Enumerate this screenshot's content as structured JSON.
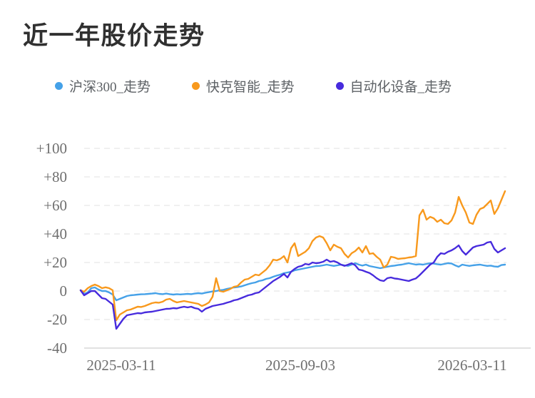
{
  "title": "近一年股价走势",
  "legend": [
    {
      "label": "沪深300_走势",
      "color": "#45a1e8"
    },
    {
      "label": "快克智能_走势",
      "color": "#f8991d"
    },
    {
      "label": "自动化设备_走势",
      "color": "#472bdd"
    }
  ],
  "colors": {
    "title_text": "#303030",
    "legend_text": "#5e6266",
    "tick_text": "#6f6f6f",
    "gridline": "#ebebeb",
    "axis_line": "#cfcfcf",
    "background": "#ffffff"
  },
  "chart_data": {
    "type": "line",
    "title": "近一年股价走势",
    "x_tick_labels": [
      "2025-03-11",
      "2025-09-03",
      "2026-03-11"
    ],
    "y_ticks": [
      100,
      80,
      60,
      40,
      20,
      0,
      -20,
      -40
    ],
    "y_tick_labels": [
      "+100",
      "+80",
      "+60",
      "+40",
      "+20",
      "0",
      "-20",
      "-40"
    ],
    "ylim": [
      -40,
      100
    ],
    "grid": "horizontal dashed",
    "legend_position": "top-left",
    "unit": "percent change",
    "series": [
      {
        "name": "沪深300_走势",
        "color": "#45a1e8",
        "values": [
          0.5,
          -2,
          -1,
          2,
          2.5,
          1,
          0,
          0,
          -1,
          -2.5,
          -6.5,
          -5.5,
          -4.5,
          -3.5,
          -3,
          -2.8,
          -2.5,
          -2.3,
          -2.2,
          -2,
          -1.8,
          -1.5,
          -2,
          -2.2,
          -1.8,
          -2.2,
          -2.5,
          -2.2,
          -2.4,
          -2.2,
          -2,
          -2.2,
          -1.8,
          -1.5,
          -1.8,
          -1.2,
          -0.8,
          -0.3,
          0,
          0.5,
          0.8,
          1.5,
          2,
          2.5,
          2.8,
          3.2,
          4,
          4.8,
          5.5,
          6,
          7,
          7.5,
          8.5,
          9,
          10,
          10.8,
          11.5,
          12.5,
          13,
          13.5,
          14.5,
          15,
          15.5,
          16,
          16.5,
          17,
          17.5,
          17.6,
          18,
          18.5,
          18,
          17.6,
          18,
          18.5,
          18,
          17.6,
          18.5,
          19.5,
          18.5,
          17.8,
          18.5,
          17.5,
          17,
          16.5,
          16,
          16.5,
          17,
          17.5,
          17.8,
          18.2,
          18.5,
          19,
          19.5,
          19,
          18.5,
          18.8,
          18.5,
          19,
          19.5,
          19.2,
          18.8,
          18.5,
          19,
          19.5,
          19.3,
          18,
          17,
          18.5,
          18,
          17.6,
          18,
          18.3,
          18.5,
          18,
          17.6,
          17.8,
          17.2,
          17,
          18.2,
          18.5
        ]
      },
      {
        "name": "快克智能_走势",
        "color": "#f8991d",
        "values": [
          0.5,
          -0.5,
          2,
          3.5,
          4.5,
          3.5,
          2,
          2.6,
          2,
          0.5,
          -20.5,
          -16.5,
          -15,
          -13.5,
          -13,
          -12,
          -11,
          -11.2,
          -10.5,
          -9.5,
          -8.5,
          -8,
          -8.2,
          -7.5,
          -6,
          -5.5,
          -7,
          -8,
          -7.5,
          -7,
          -7.5,
          -8,
          -8.5,
          -9,
          -10.5,
          -9.5,
          -8,
          -4,
          9,
          0,
          -0.5,
          0.5,
          1.5,
          3,
          3.5,
          6,
          8,
          8.5,
          10,
          11.5,
          11,
          13,
          15,
          18,
          22,
          21.5,
          22.5,
          24.5,
          20,
          30,
          33.5,
          24.5,
          26,
          27.5,
          30,
          35,
          37.5,
          38.5,
          37.5,
          33.5,
          28.5,
          32.5,
          31,
          30,
          26,
          23.5,
          26.5,
          28,
          30.5,
          27,
          31.5,
          26,
          26.5,
          24,
          22,
          16.5,
          18.5,
          24,
          23.5,
          22.5,
          22.8,
          23,
          23.5,
          23.8,
          24.5,
          53,
          57,
          50,
          52,
          51,
          48.5,
          50,
          47.5,
          47,
          49.5,
          55,
          66,
          60,
          55,
          48,
          47,
          53.5,
          57.5,
          58.5,
          61,
          63.5,
          54,
          58,
          64,
          70
        ]
      },
      {
        "name": "自动化设备_走势",
        "color": "#472bdd",
        "values": [
          0.5,
          -3,
          -1.5,
          0,
          0,
          -2.5,
          -5,
          -5.5,
          -7.5,
          -9.5,
          -26.5,
          -23,
          -19.5,
          -17,
          -16.5,
          -16,
          -15.5,
          -15.7,
          -15,
          -14.7,
          -14.5,
          -14,
          -13.5,
          -13,
          -12.5,
          -12.4,
          -12,
          -12.2,
          -11.5,
          -11,
          -11.5,
          -11,
          -12,
          -12.5,
          -14.5,
          -12.5,
          -11.5,
          -10.5,
          -10,
          -9.5,
          -9,
          -8.2,
          -7.5,
          -6.5,
          -6,
          -5,
          -4,
          -3,
          -2.5,
          -1.5,
          -1,
          1,
          3,
          5,
          7,
          8.5,
          10,
          12,
          9.5,
          13.5,
          15.5,
          17,
          17.6,
          19,
          18.5,
          20,
          19.5,
          19.8,
          20.5,
          22,
          20.5,
          21,
          20,
          18.5,
          17.6,
          18.5,
          19.5,
          18,
          15,
          14.5,
          13.5,
          12.6,
          11,
          9,
          7.5,
          7,
          9,
          9.5,
          8.8,
          8.5,
          8,
          7.5,
          7,
          8,
          8.8,
          11,
          13.5,
          16,
          18.5,
          20,
          24,
          26.5,
          26,
          27.5,
          28.5,
          30,
          32,
          28,
          25.5,
          28,
          30.5,
          31.5,
          32,
          32.5,
          34,
          34.5,
          29.5,
          27,
          28.5,
          30
        ]
      }
    ]
  }
}
